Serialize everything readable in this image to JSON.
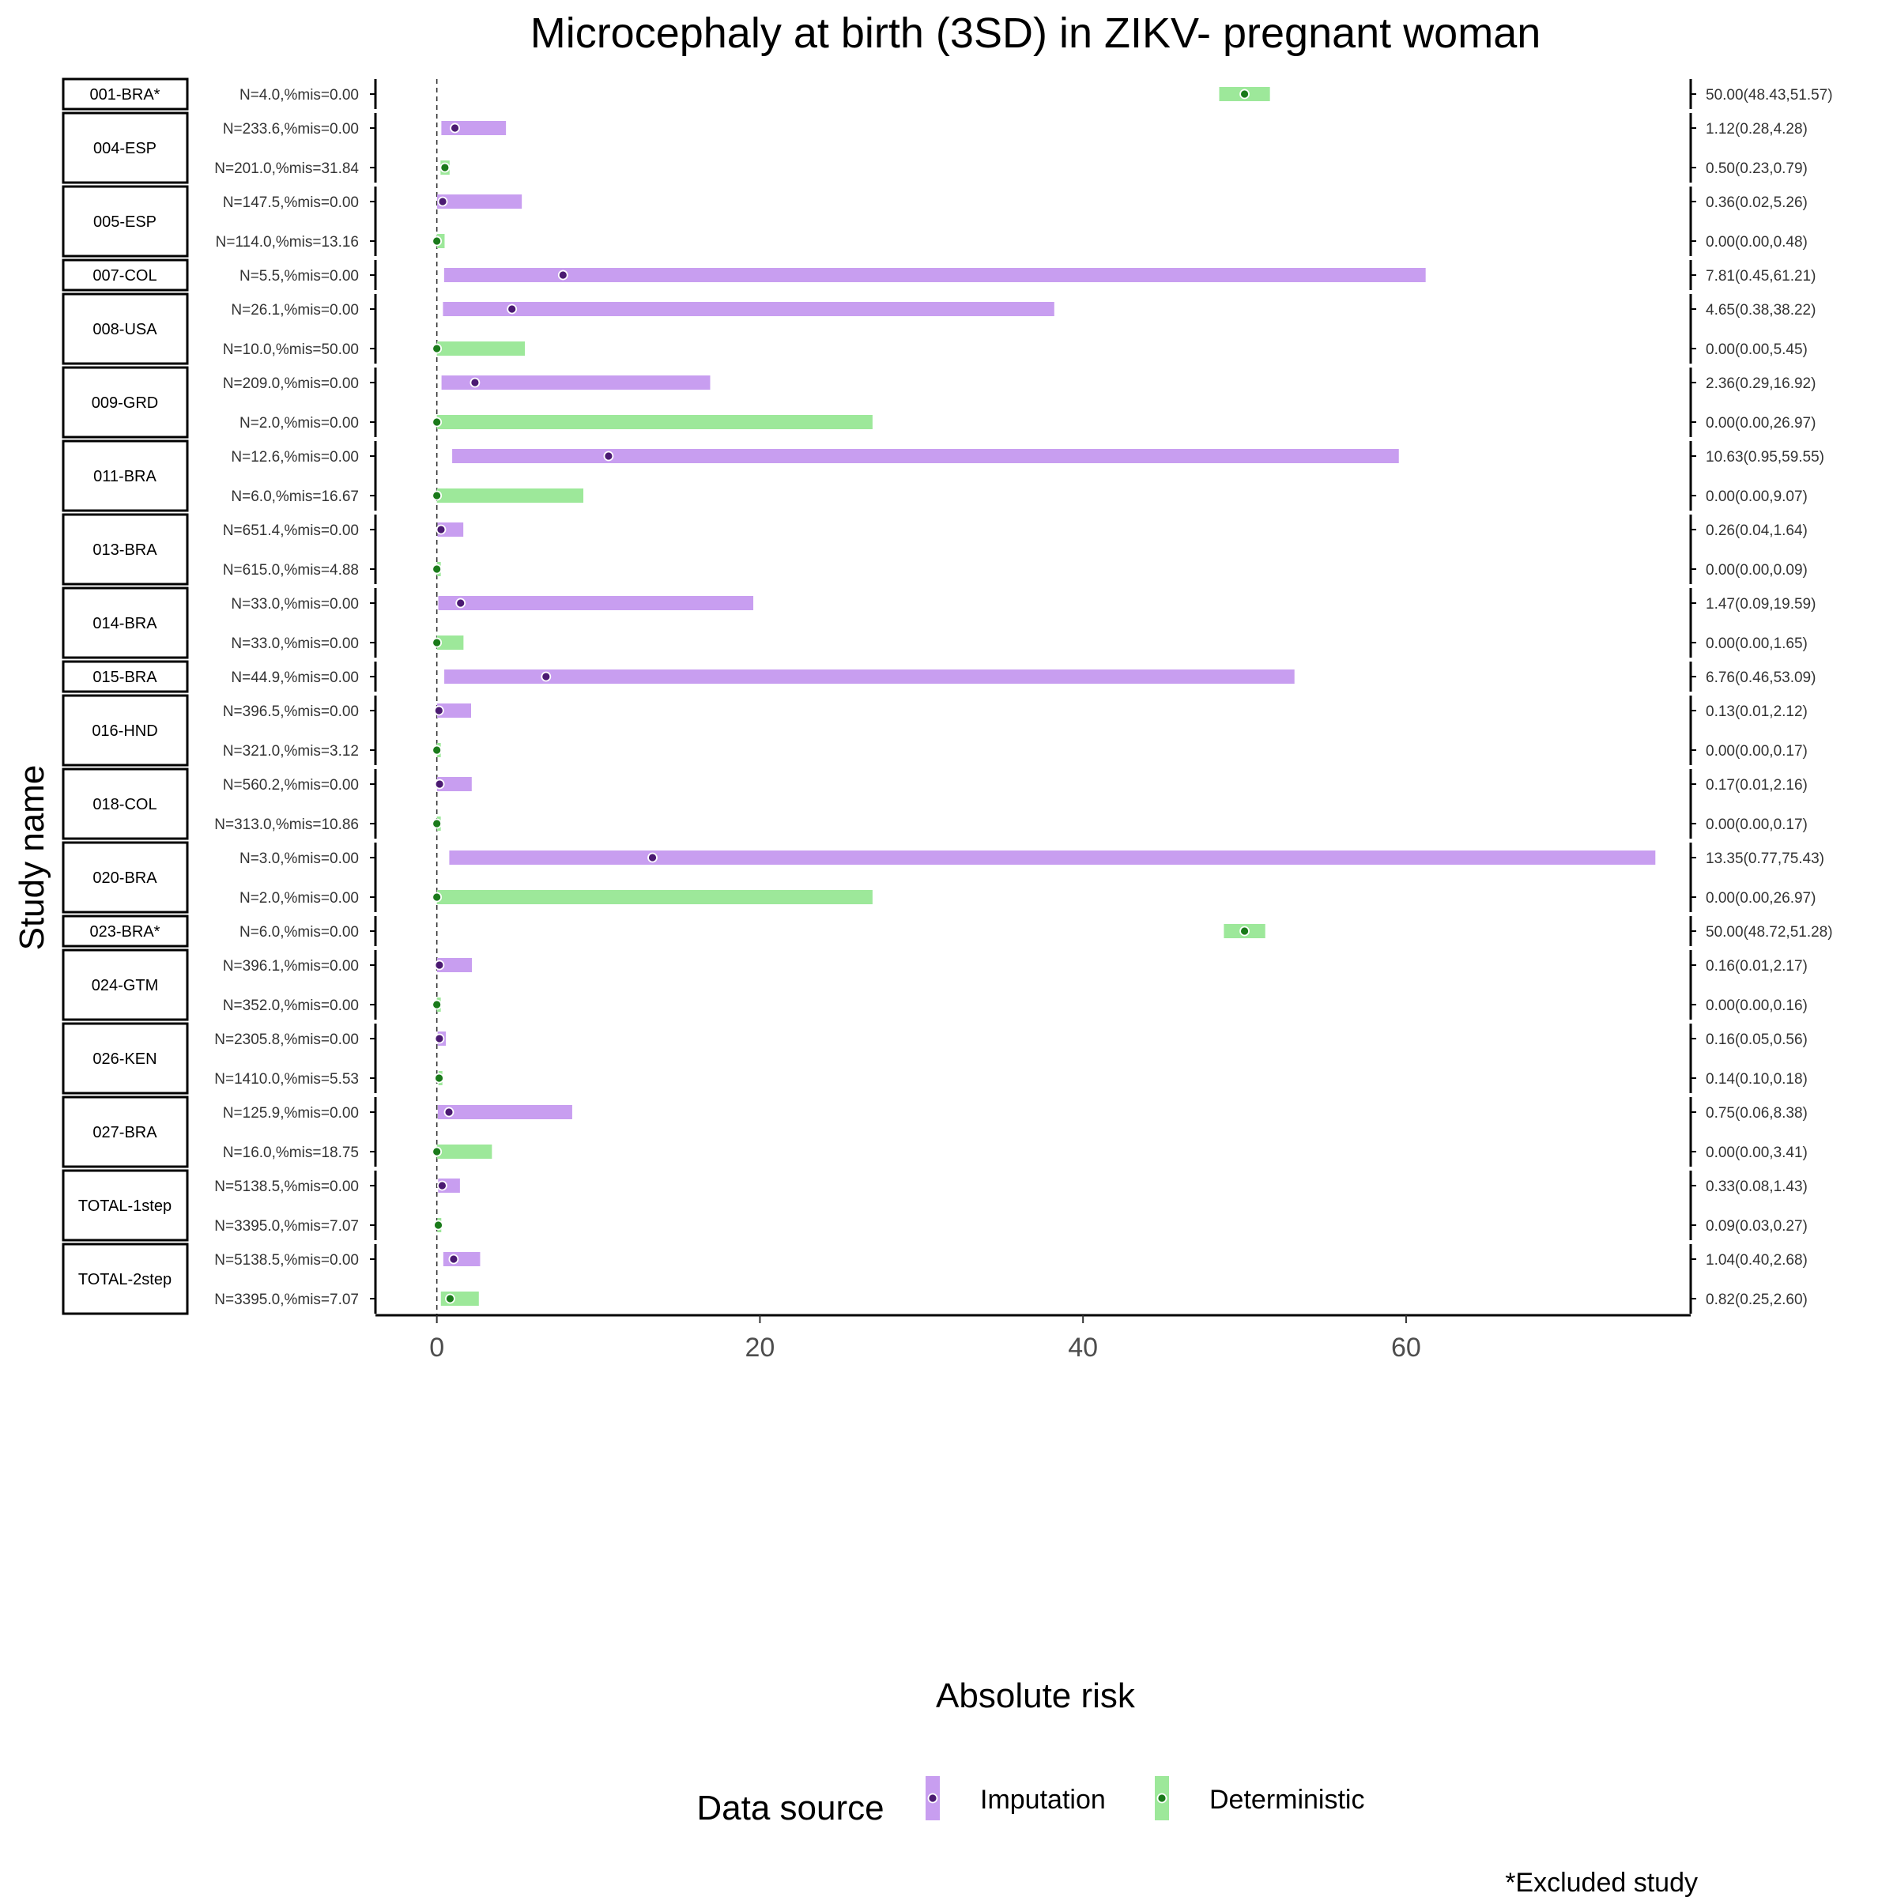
{
  "chart_data": {
    "type": "forest",
    "title": "Microcephaly at birth (3SD) in ZIKV- pregnant woman",
    "xlabel": "Absolute risk",
    "ylabel": "Study name",
    "xlim": [
      -3.8,
      78.4
    ],
    "xticks": [
      0,
      20,
      40,
      60
    ],
    "reference_line": 0,
    "colors": {
      "imputation_bar": "#c89ef0",
      "imputation_point": "#4b1a72",
      "deterministic_bar": "#9de89a",
      "deterministic_point": "#1a7a1a"
    },
    "legend": {
      "title": "Data source",
      "position": "bottom",
      "items": [
        {
          "key": "imputation",
          "label": "Imputation"
        },
        {
          "key": "deterministic",
          "label": "Deterministic"
        }
      ]
    },
    "footnote": "*Excluded study",
    "studies": [
      {
        "name": "001-BRA*",
        "rows": [
          {
            "source": "deterministic",
            "label": "N=4.0,%mis=0.00",
            "estimate": 50.0,
            "lower": 48.43,
            "upper": 51.57,
            "text": "50.00(48.43,51.57)"
          }
        ]
      },
      {
        "name": "004-ESP",
        "rows": [
          {
            "source": "imputation",
            "label": "N=233.6,%mis=0.00",
            "estimate": 1.12,
            "lower": 0.28,
            "upper": 4.28,
            "text": "1.12(0.28,4.28)"
          },
          {
            "source": "deterministic",
            "label": "N=201.0,%mis=31.84",
            "estimate": 0.5,
            "lower": 0.23,
            "upper": 0.79,
            "text": "0.50(0.23,0.79)"
          }
        ]
      },
      {
        "name": "005-ESP",
        "rows": [
          {
            "source": "imputation",
            "label": "N=147.5,%mis=0.00",
            "estimate": 0.36,
            "lower": 0.02,
            "upper": 5.26,
            "text": "0.36(0.02,5.26)"
          },
          {
            "source": "deterministic",
            "label": "N=114.0,%mis=13.16",
            "estimate": 0.0,
            "lower": 0.0,
            "upper": 0.48,
            "text": "0.00(0.00,0.48)"
          }
        ]
      },
      {
        "name": "007-COL",
        "rows": [
          {
            "source": "imputation",
            "label": "N=5.5,%mis=0.00",
            "estimate": 7.81,
            "lower": 0.45,
            "upper": 61.21,
            "text": "7.81(0.45,61.21)"
          }
        ]
      },
      {
        "name": "008-USA",
        "rows": [
          {
            "source": "imputation",
            "label": "N=26.1,%mis=0.00",
            "estimate": 4.65,
            "lower": 0.38,
            "upper": 38.22,
            "text": "4.65(0.38,38.22)"
          },
          {
            "source": "deterministic",
            "label": "N=10.0,%mis=50.00",
            "estimate": 0.0,
            "lower": 0.0,
            "upper": 5.45,
            "text": "0.00(0.00,5.45)"
          }
        ]
      },
      {
        "name": "009-GRD",
        "rows": [
          {
            "source": "imputation",
            "label": "N=209.0,%mis=0.00",
            "estimate": 2.36,
            "lower": 0.29,
            "upper": 16.92,
            "text": "2.36(0.29,16.92)"
          },
          {
            "source": "deterministic",
            "label": "N=2.0,%mis=0.00",
            "estimate": 0.0,
            "lower": 0.0,
            "upper": 26.97,
            "text": "0.00(0.00,26.97)"
          }
        ]
      },
      {
        "name": "011-BRA",
        "rows": [
          {
            "source": "imputation",
            "label": "N=12.6,%mis=0.00",
            "estimate": 10.63,
            "lower": 0.95,
            "upper": 59.55,
            "text": "10.63(0.95,59.55)"
          },
          {
            "source": "deterministic",
            "label": "N=6.0,%mis=16.67",
            "estimate": 0.0,
            "lower": 0.0,
            "upper": 9.07,
            "text": "0.00(0.00,9.07)"
          }
        ]
      },
      {
        "name": "013-BRA",
        "rows": [
          {
            "source": "imputation",
            "label": "N=651.4,%mis=0.00",
            "estimate": 0.26,
            "lower": 0.04,
            "upper": 1.64,
            "text": "0.26(0.04,1.64)"
          },
          {
            "source": "deterministic",
            "label": "N=615.0,%mis=4.88",
            "estimate": 0.0,
            "lower": 0.0,
            "upper": 0.09,
            "text": "0.00(0.00,0.09)"
          }
        ]
      },
      {
        "name": "014-BRA",
        "rows": [
          {
            "source": "imputation",
            "label": "N=33.0,%mis=0.00",
            "estimate": 1.47,
            "lower": 0.09,
            "upper": 19.59,
            "text": "1.47(0.09,19.59)"
          },
          {
            "source": "deterministic",
            "label": "N=33.0,%mis=0.00",
            "estimate": 0.0,
            "lower": 0.0,
            "upper": 1.65,
            "text": "0.00(0.00,1.65)"
          }
        ]
      },
      {
        "name": "015-BRA",
        "rows": [
          {
            "source": "imputation",
            "label": "N=44.9,%mis=0.00",
            "estimate": 6.76,
            "lower": 0.46,
            "upper": 53.09,
            "text": "6.76(0.46,53.09)"
          }
        ]
      },
      {
        "name": "016-HND",
        "rows": [
          {
            "source": "imputation",
            "label": "N=396.5,%mis=0.00",
            "estimate": 0.13,
            "lower": 0.01,
            "upper": 2.12,
            "text": "0.13(0.01,2.12)"
          },
          {
            "source": "deterministic",
            "label": "N=321.0,%mis=3.12",
            "estimate": 0.0,
            "lower": 0.0,
            "upper": 0.17,
            "text": "0.00(0.00,0.17)"
          }
        ]
      },
      {
        "name": "018-COL",
        "rows": [
          {
            "source": "imputation",
            "label": "N=560.2,%mis=0.00",
            "estimate": 0.17,
            "lower": 0.01,
            "upper": 2.16,
            "text": "0.17(0.01,2.16)"
          },
          {
            "source": "deterministic",
            "label": "N=313.0,%mis=10.86",
            "estimate": 0.0,
            "lower": 0.0,
            "upper": 0.17,
            "text": "0.00(0.00,0.17)"
          }
        ]
      },
      {
        "name": "020-BRA",
        "rows": [
          {
            "source": "imputation",
            "label": "N=3.0,%mis=0.00",
            "estimate": 13.35,
            "lower": 0.77,
            "upper": 75.43,
            "text": "13.35(0.77,75.43)"
          },
          {
            "source": "deterministic",
            "label": "N=2.0,%mis=0.00",
            "estimate": 0.0,
            "lower": 0.0,
            "upper": 26.97,
            "text": "0.00(0.00,26.97)"
          }
        ]
      },
      {
        "name": "023-BRA*",
        "rows": [
          {
            "source": "deterministic",
            "label": "N=6.0,%mis=0.00",
            "estimate": 50.0,
            "lower": 48.72,
            "upper": 51.28,
            "text": "50.00(48.72,51.28)"
          }
        ]
      },
      {
        "name": "024-GTM",
        "rows": [
          {
            "source": "imputation",
            "label": "N=396.1,%mis=0.00",
            "estimate": 0.16,
            "lower": 0.01,
            "upper": 2.17,
            "text": "0.16(0.01,2.17)"
          },
          {
            "source": "deterministic",
            "label": "N=352.0,%mis=0.00",
            "estimate": 0.0,
            "lower": 0.0,
            "upper": 0.16,
            "text": "0.00(0.00,0.16)"
          }
        ]
      },
      {
        "name": "026-KEN",
        "rows": [
          {
            "source": "imputation",
            "label": "N=2305.8,%mis=0.00",
            "estimate": 0.16,
            "lower": 0.05,
            "upper": 0.56,
            "text": "0.16(0.05,0.56)"
          },
          {
            "source": "deterministic",
            "label": "N=1410.0,%mis=5.53",
            "estimate": 0.14,
            "lower": 0.1,
            "upper": 0.18,
            "text": "0.14(0.10,0.18)"
          }
        ]
      },
      {
        "name": "027-BRA",
        "rows": [
          {
            "source": "imputation",
            "label": "N=125.9,%mis=0.00",
            "estimate": 0.75,
            "lower": 0.06,
            "upper": 8.38,
            "text": "0.75(0.06,8.38)"
          },
          {
            "source": "deterministic",
            "label": "N=16.0,%mis=18.75",
            "estimate": 0.0,
            "lower": 0.0,
            "upper": 3.41,
            "text": "0.00(0.00,3.41)"
          }
        ]
      },
      {
        "name": "TOTAL-1step",
        "rows": [
          {
            "source": "imputation",
            "label": "N=5138.5,%mis=0.00",
            "estimate": 0.33,
            "lower": 0.08,
            "upper": 1.43,
            "text": "0.33(0.08,1.43)"
          },
          {
            "source": "deterministic",
            "label": "N=3395.0,%mis=7.07",
            "estimate": 0.09,
            "lower": 0.03,
            "upper": 0.27,
            "text": "0.09(0.03,0.27)"
          }
        ]
      },
      {
        "name": "TOTAL-2step",
        "rows": [
          {
            "source": "imputation",
            "label": "N=5138.5,%mis=0.00",
            "estimate": 1.04,
            "lower": 0.4,
            "upper": 2.68,
            "text": "1.04(0.40,2.68)"
          },
          {
            "source": "deterministic",
            "label": "N=3395.0,%mis=7.07",
            "estimate": 0.82,
            "lower": 0.25,
            "upper": 2.6,
            "text": "0.82(0.25,2.60)"
          }
        ]
      }
    ]
  }
}
